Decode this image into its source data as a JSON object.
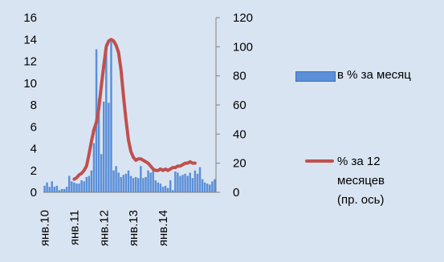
{
  "chart_data": {
    "type": "bar+line",
    "x_labels": [
      "янв.10",
      "янв.11",
      "янв.12",
      "янв.13",
      "янв.14"
    ],
    "y_left": {
      "ylim": [
        0,
        16
      ],
      "ticks": [
        0,
        2,
        4,
        6,
        8,
        10,
        12,
        14,
        16
      ]
    },
    "y_right": {
      "ylim": [
        0,
        120
      ],
      "ticks": [
        0,
        20,
        40,
        60,
        80,
        100,
        120
      ]
    },
    "series": [
      {
        "name": "в % за месяц",
        "type": "bar",
        "axis": "left",
        "color": "#5b8fd8",
        "values": [
          0.6,
          0.9,
          0.5,
          1.0,
          0.5,
          0.6,
          0.2,
          0.3,
          0.3,
          0.5,
          1.5,
          1.0,
          0.9,
          0.8,
          0.8,
          1.1,
          1.0,
          1.4,
          1.5,
          2.0,
          4.5,
          13.1,
          8.6,
          3.5,
          8.3,
          13.6,
          8.2,
          13.8,
          2.0,
          2.4,
          1.8,
          1.4,
          1.6,
          1.7,
          2.0,
          1.5,
          1.3,
          1.4,
          1.3,
          2.4,
          1.3,
          1.4,
          2.0,
          1.8,
          2.1,
          1.1,
          0.9,
          0.8,
          0.5,
          0.6,
          0.4,
          1.1,
          0.2,
          1.9,
          1.8,
          1.5,
          1.6,
          1.7,
          1.5,
          1.8,
          1.3,
          2.0,
          1.7,
          2.3,
          1.2,
          0.9,
          0.8,
          0.7,
          1.0,
          1.2
        ]
      },
      {
        "name": "% за 12 месяцев (пр. ось)",
        "legend_lines": [
          "% за 12",
          "месяцев",
          "(пр. ось)"
        ],
        "type": "line",
        "axis": "right",
        "color": "#c0504d",
        "start_index": 12,
        "values": [
          9,
          10,
          12,
          13,
          15,
          18,
          26,
          35,
          43,
          48,
          58,
          73,
          87,
          100,
          104,
          105,
          104,
          101,
          96,
          84,
          66,
          50,
          36,
          28,
          24,
          22,
          23,
          23,
          22,
          21,
          20,
          18,
          16,
          15,
          15,
          16,
          15,
          16,
          15,
          16,
          17,
          17,
          18,
          18,
          19,
          20,
          20,
          21,
          20,
          20
        ]
      }
    ]
  }
}
